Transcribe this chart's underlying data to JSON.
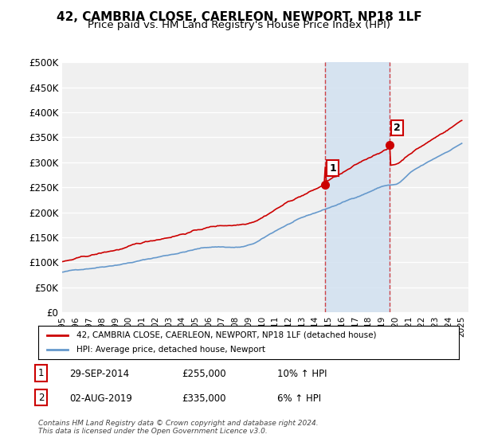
{
  "title": "42, CAMBRIA CLOSE, CAERLEON, NEWPORT, NP18 1LF",
  "subtitle": "Price paid vs. HM Land Registry's House Price Index (HPI)",
  "ylabel_ticks": [
    "£0",
    "£50K",
    "£100K",
    "£150K",
    "£200K",
    "£250K",
    "£300K",
    "£350K",
    "£400K",
    "£450K",
    "£500K"
  ],
  "ytick_vals": [
    0,
    50000,
    100000,
    150000,
    200000,
    250000,
    300000,
    350000,
    400000,
    450000,
    500000
  ],
  "ylim": [
    0,
    500000
  ],
  "xlim_start": 1995.0,
  "xlim_end": 2025.5,
  "background_color": "#ffffff",
  "plot_bg_color": "#f0f0f0",
  "grid_color": "#ffffff",
  "hpi_color": "#6699cc",
  "price_color": "#cc0000",
  "shade_color": "#d0e0f0",
  "point1_x": 2014.75,
  "point1_y": 255000,
  "point1_label": "1",
  "point2_x": 2019.58,
  "point2_y": 335000,
  "point2_label": "2",
  "vline1_x": 2014.75,
  "vline2_x": 2019.58,
  "legend_line1": "42, CAMBRIA CLOSE, CAERLEON, NEWPORT, NP18 1LF (detached house)",
  "legend_line2": "HPI: Average price, detached house, Newport",
  "annotation1_date": "29-SEP-2014",
  "annotation1_price": "£255,000",
  "annotation1_hpi": "10% ↑ HPI",
  "annotation2_date": "02-AUG-2019",
  "annotation2_price": "£335,000",
  "annotation2_hpi": "6% ↑ HPI",
  "footer": "Contains HM Land Registry data © Crown copyright and database right 2024.\nThis data is licensed under the Open Government Licence v3.0.",
  "xtick_years": [
    1995,
    1996,
    1997,
    1998,
    1999,
    2000,
    2001,
    2002,
    2003,
    2004,
    2005,
    2006,
    2007,
    2008,
    2009,
    2010,
    2011,
    2012,
    2013,
    2014,
    2015,
    2016,
    2017,
    2018,
    2019,
    2020,
    2021,
    2022,
    2023,
    2024,
    2025
  ]
}
